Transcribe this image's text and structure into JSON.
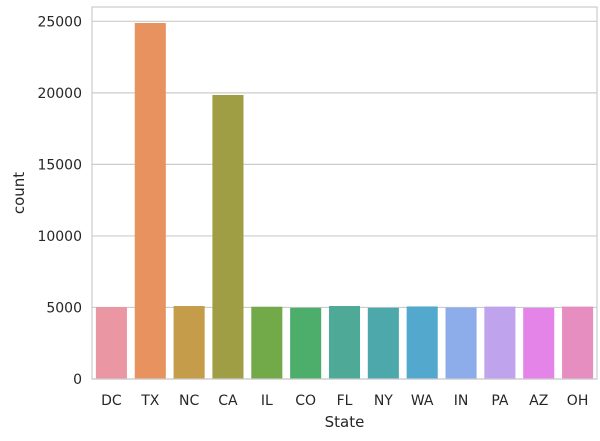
{
  "chart_data": {
    "type": "bar",
    "xlabel": "State",
    "ylabel": "count",
    "categories": [
      "DC",
      "TX",
      "NC",
      "CA",
      "IL",
      "CO",
      "FL",
      "NY",
      "WA",
      "IN",
      "PA",
      "AZ",
      "OH"
    ],
    "values": [
      5030,
      24880,
      5100,
      19850,
      5050,
      4980,
      5100,
      4980,
      5070,
      5000,
      5060,
      4970,
      5060
    ],
    "colors": [
      "#ea96a3",
      "#e8925f",
      "#c59c4a",
      "#a09e44",
      "#72aa4a",
      "#4dae6c",
      "#4ea996",
      "#4da8ab",
      "#52a8cd",
      "#8cacea",
      "#bfa3ec",
      "#e484e9",
      "#e78ec0"
    ],
    "ylim": [
      0,
      26000
    ],
    "yticks": [
      0,
      5000,
      10000,
      15000,
      20000,
      25000
    ],
    "grid": true,
    "style": "seaborn-whitegrid"
  }
}
